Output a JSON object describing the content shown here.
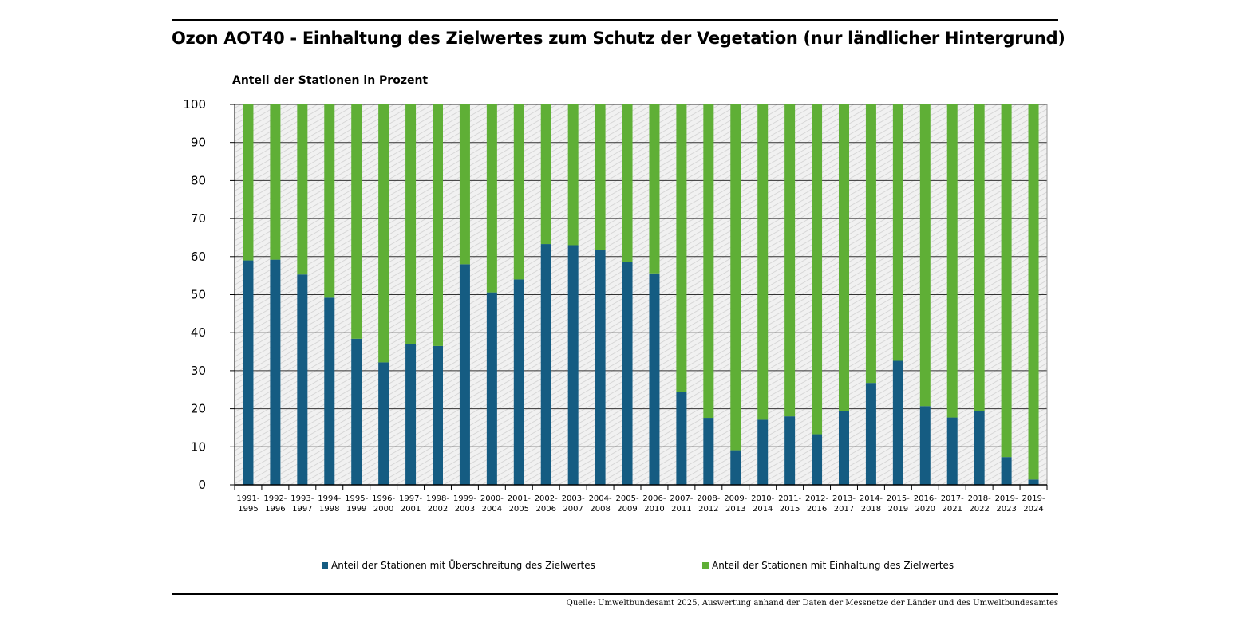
{
  "chart_data": {
    "type": "bar",
    "stacked": true,
    "title": "Ozon AOT40 - Einhaltung des Zielwertes zum Schutz der Vegetation (nur ländlicher Hintergrund)",
    "ylabel": "Anteil der Stationen in Prozent",
    "xlabel": "",
    "ylim": [
      0,
      100
    ],
    "yticks": [
      0,
      10,
      20,
      30,
      40,
      50,
      60,
      70,
      80,
      90,
      100
    ],
    "grid": true,
    "categories": [
      [
        "1991-",
        "1995"
      ],
      [
        "1992-",
        "1996"
      ],
      [
        "1993-",
        "1997"
      ],
      [
        "1994-",
        "1998"
      ],
      [
        "1995-",
        "1999"
      ],
      [
        "1996-",
        "2000"
      ],
      [
        "1997-",
        "2001"
      ],
      [
        "1998-",
        "2002"
      ],
      [
        "1999-",
        "2003"
      ],
      [
        "2000-",
        "2004"
      ],
      [
        "2001-",
        "2005"
      ],
      [
        "2002-",
        "2006"
      ],
      [
        "2003-",
        "2007"
      ],
      [
        "2004-",
        "2008"
      ],
      [
        "2005-",
        "2009"
      ],
      [
        "2006-",
        "2010"
      ],
      [
        "2007-",
        "2011"
      ],
      [
        "2008-",
        "2012"
      ],
      [
        "2009-",
        "2013"
      ],
      [
        "2010-",
        "2014"
      ],
      [
        "2011-",
        "2015"
      ],
      [
        "2012-",
        "2016"
      ],
      [
        "2013-",
        "2017"
      ],
      [
        "2014-",
        "2018"
      ],
      [
        "2015-",
        "2019"
      ],
      [
        "2016-",
        "2020"
      ],
      [
        "2017-",
        "2021"
      ],
      [
        "2018-",
        "2022"
      ],
      [
        "2019-",
        "2023"
      ],
      [
        "2019-",
        "2024"
      ]
    ],
    "series": [
      {
        "name": "Anteil der Stationen mit Überschreitung des Zielwertes",
        "color": "#155c82",
        "values": [
          59,
          59.2,
          55.3,
          49.2,
          38.4,
          32.2,
          37,
          36.5,
          58,
          50.6,
          54,
          63.3,
          63,
          61.8,
          58.6,
          55.6,
          24.5,
          17.6,
          9.1,
          17.1,
          18,
          13.3,
          19.3,
          26.8,
          32.6,
          20.7,
          17.7,
          19.3,
          7.3,
          1.4
        ]
      },
      {
        "name": "Anteil der Stationen mit Einhaltung des Zielwertes",
        "color": "#5faf36",
        "values": [
          41,
          40.8,
          44.7,
          50.8,
          61.6,
          67.8,
          63,
          63.5,
          42,
          49.4,
          46,
          36.7,
          37,
          38.2,
          41.4,
          44.4,
          75.5,
          82.4,
          90.9,
          82.9,
          82,
          86.7,
          80.7,
          73.2,
          67.4,
          79.3,
          82.3,
          80.7,
          92.7,
          98.6
        ]
      }
    ]
  },
  "source": "Quelle: Umweltbundesamt 2025, Auswertung anhand der Daten der Messnetze der Länder und des Umweltbundesamtes"
}
